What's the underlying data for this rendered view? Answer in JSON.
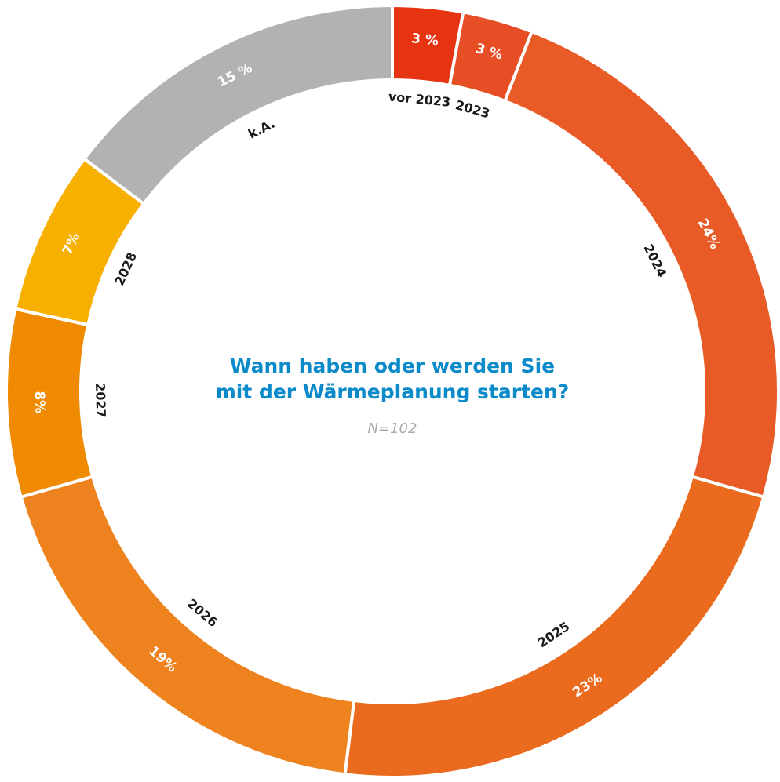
{
  "chart_data": {
    "type": "donut",
    "title": "Wann haben oder werden Sie mit der Wärmeplanung starten?",
    "subtitle": "N=102",
    "categories": [
      "vor 2023",
      "2023",
      "2024",
      "2025",
      "2026",
      "2027",
      "2028",
      "k.A."
    ],
    "values": [
      3,
      3,
      24,
      23,
      19,
      8,
      7,
      15
    ],
    "value_labels": [
      "3 %",
      "3 %",
      "24%",
      "23%",
      "19%",
      "8%",
      "7%",
      "15 %"
    ],
    "colors": [
      "#e63312",
      "#e84e25",
      "#e85a26",
      "#ea6a1e",
      "#ee821e",
      "#f08a00",
      "#f7b000",
      "#b2b2b2"
    ]
  }
}
